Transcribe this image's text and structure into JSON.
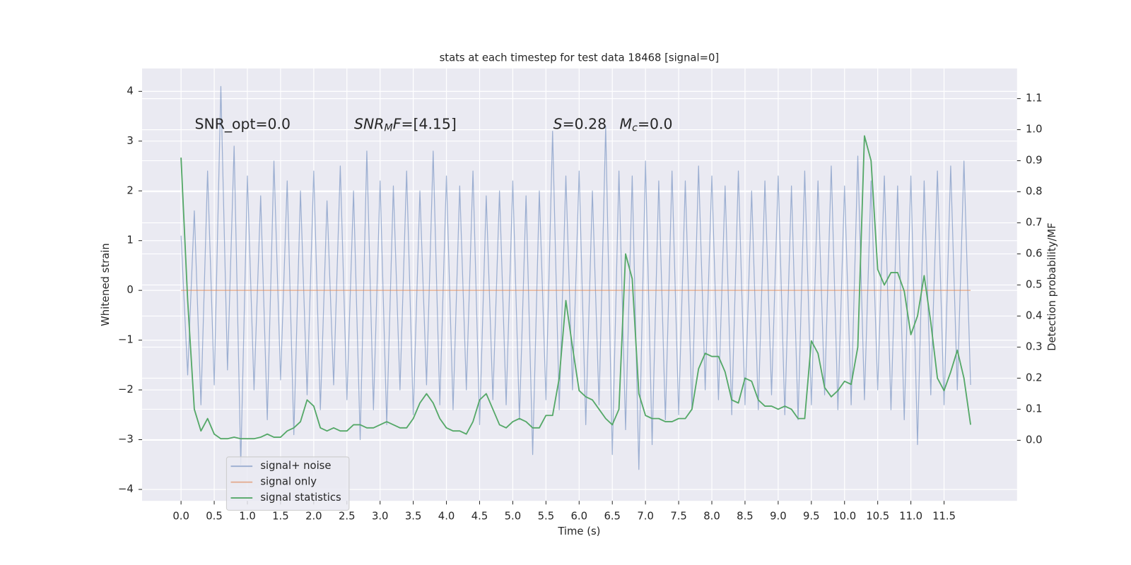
{
  "chart_data": {
    "type": "line",
    "title": "stats at each timestep for test data 18468 [signal=0]",
    "xlabel": "Time (s)",
    "ylabel": "Whitened strain",
    "y2label": "Detection probability/MF",
    "xlim": [
      -0.587,
      12.6
    ],
    "ylim": [
      -4.23,
      4.46
    ],
    "y2lim": [
      -0.195,
      1.197
    ],
    "xticks": [
      {
        "value": 0,
        "label": "0.0"
      },
      {
        "value": 0.5,
        "label": "0.5"
      },
      {
        "value": 1,
        "label": "1.0"
      },
      {
        "value": 1.5,
        "label": "1.5"
      },
      {
        "value": 2,
        "label": "2.0"
      },
      {
        "value": 2.5,
        "label": "2.5"
      },
      {
        "value": 3,
        "label": "3.0"
      },
      {
        "value": 3.5,
        "label": "3.5"
      },
      {
        "value": 4,
        "label": "4.0"
      },
      {
        "value": 4.5,
        "label": "4.5"
      },
      {
        "value": 5,
        "label": "5.0"
      },
      {
        "value": 5.5,
        "label": "5.5"
      },
      {
        "value": 6,
        "label": "6.0"
      },
      {
        "value": 6.5,
        "label": "6.5"
      },
      {
        "value": 7,
        "label": "7.0"
      },
      {
        "value": 7.5,
        "label": "7.5"
      },
      {
        "value": 8,
        "label": "8.0"
      },
      {
        "value": 8.5,
        "label": "8.5"
      },
      {
        "value": 9,
        "label": "9.0"
      },
      {
        "value": 9.5,
        "label": "9.5"
      },
      {
        "value": 10,
        "label": "10.0"
      },
      {
        "value": 10.5,
        "label": "10.5"
      },
      {
        "value": 11,
        "label": "11.0"
      },
      {
        "value": 11.5,
        "label": "11.5"
      }
    ],
    "yticks": [
      {
        "value": -4,
        "label": "−4"
      },
      {
        "value": -3,
        "label": "−3"
      },
      {
        "value": -2,
        "label": "−2"
      },
      {
        "value": -1,
        "label": "−1"
      },
      0,
      1,
      2,
      3,
      4
    ],
    "y2ticks": [
      {
        "value": 0,
        "label": "0.0"
      },
      {
        "value": 0.1,
        "label": "0.1"
      },
      {
        "value": 0.2,
        "label": "0.2"
      },
      {
        "value": 0.3,
        "label": "0.3"
      },
      {
        "value": 0.4,
        "label": "0.4"
      },
      {
        "value": 0.5,
        "label": "0.5"
      },
      {
        "value": 0.6,
        "label": "0.6"
      },
      {
        "value": 0.7,
        "label": "0.7"
      },
      {
        "value": 0.8,
        "label": "0.8"
      },
      {
        "value": 0.9,
        "label": "0.9"
      },
      {
        "value": 1,
        "label": "1.0"
      },
      {
        "value": 1.1,
        "label": "1.1"
      }
    ],
    "grid": true,
    "legend": "lower left",
    "annotations": [
      [
        {
          "text": "SNR_opt=0.0"
        }
      ],
      [
        {
          "text": "SNR",
          "italic": true
        },
        {
          "text": "M",
          "italic": true,
          "sub": true
        },
        {
          "text": "F",
          "italic": true
        },
        {
          "text": "=[4.15]"
        }
      ],
      [
        {
          "text": "S",
          "italic": true
        },
        {
          "text": "=0.28"
        }
      ],
      [
        {
          "text": "M",
          "italic": true
        },
        {
          "text": "c",
          "italic": true,
          "sub": true
        },
        {
          "text": "=0.0"
        }
      ]
    ],
    "x": [
      0,
      0.1,
      0.2,
      0.3,
      0.4,
      0.5,
      0.6,
      0.7,
      0.8,
      0.9,
      1,
      1.1,
      1.2,
      1.3,
      1.4,
      1.5,
      1.6,
      1.7,
      1.8,
      1.9,
      2,
      2.1,
      2.2,
      2.3,
      2.4,
      2.5,
      2.6,
      2.7,
      2.8,
      2.9,
      3,
      3.1,
      3.2,
      3.3,
      3.4,
      3.5,
      3.6,
      3.7,
      3.8,
      3.9,
      4,
      4.1,
      4.2,
      4.3,
      4.4,
      4.5,
      4.6,
      4.7,
      4.8,
      4.9,
      5,
      5.1,
      5.2,
      5.3,
      5.4,
      5.5,
      5.6,
      5.7,
      5.8,
      5.9,
      6,
      6.1,
      6.2,
      6.3,
      6.4,
      6.5,
      6.6,
      6.7,
      6.8,
      6.9,
      7,
      7.1,
      7.2,
      7.3,
      7.4,
      7.5,
      7.6,
      7.7,
      7.8,
      7.9,
      8,
      8.1,
      8.2,
      8.3,
      8.4,
      8.5,
      8.6,
      8.7,
      8.8,
      8.9,
      9,
      9.1,
      9.2,
      9.3,
      9.4,
      9.5,
      9.6,
      9.7,
      9.8,
      9.9,
      10,
      10.1,
      10.2,
      10.3,
      10.4,
      10.5,
      10.6,
      10.7,
      10.8,
      10.9,
      11,
      11.1,
      11.2,
      11.3,
      11.4,
      11.5,
      11.6,
      11.7,
      11.8,
      11.9
    ],
    "series": [
      {
        "name": "signal+ noise",
        "color": "#4c72b0",
        "axis": "y",
        "values": [
          1.1,
          -1.7,
          1.6,
          -2.3,
          2.4,
          -1.9,
          4.1,
          -1.6,
          2.9,
          -3.5,
          2.3,
          -2.0,
          1.9,
          -2.6,
          2.6,
          -1.8,
          2.2,
          -2.9,
          2.0,
          -2.1,
          2.4,
          -2.4,
          1.8,
          -1.9,
          2.5,
          -2.2,
          2.0,
          -3.0,
          2.8,
          -2.4,
          2.2,
          -2.7,
          2.1,
          -2.0,
          2.4,
          -2.5,
          2.0,
          -1.9,
          2.8,
          -2.3,
          2.3,
          -2.4,
          2.1,
          -2.0,
          2.4,
          -2.7,
          1.9,
          -2.2,
          2.0,
          -2.3,
          2.2,
          -2.6,
          1.9,
          -3.3,
          2.0,
          -2.2,
          3.2,
          -2.4,
          2.3,
          -2.0,
          2.4,
          -2.7,
          2.0,
          -2.3,
          3.3,
          -3.3,
          2.4,
          -2.8,
          2.3,
          -3.6,
          2.6,
          -3.1,
          2.2,
          -2.6,
          2.4,
          -2.5,
          2.2,
          -2.4,
          2.5,
          -2.0,
          2.3,
          -2.2,
          2.1,
          -2.5,
          2.4,
          -2.3,
          2.0,
          -2.4,
          2.2,
          -2.1,
          2.3,
          -2.5,
          2.1,
          -2.6,
          2.4,
          -2.3,
          2.2,
          -2.1,
          2.5,
          -2.4,
          2.1,
          -2.3,
          2.7,
          -2.2,
          2.2,
          -2.0,
          2.3,
          -2.4,
          2.1,
          -2.6,
          2.3,
          -3.1,
          2.2,
          -2.1,
          2.4,
          -2.3,
          2.5,
          -2.0,
          2.6,
          -1.9
        ]
      },
      {
        "name": "signal only",
        "color": "#dd8452",
        "axis": "y",
        "values": [
          0,
          0,
          0,
          0,
          0,
          0,
          0,
          0,
          0,
          0,
          0,
          0,
          0,
          0,
          0,
          0,
          0,
          0,
          0,
          0,
          0,
          0,
          0,
          0,
          0,
          0,
          0,
          0,
          0,
          0,
          0,
          0,
          0,
          0,
          0,
          0,
          0,
          0,
          0,
          0,
          0,
          0,
          0,
          0,
          0,
          0,
          0,
          0,
          0,
          0,
          0,
          0,
          0,
          0,
          0,
          0,
          0,
          0,
          0,
          0,
          0,
          0,
          0,
          0,
          0,
          0,
          0,
          0,
          0,
          0,
          0,
          0,
          0,
          0,
          0,
          0,
          0,
          0,
          0,
          0,
          0,
          0,
          0,
          0,
          0,
          0,
          0,
          0,
          0,
          0,
          0,
          0,
          0,
          0,
          0,
          0,
          0,
          0,
          0,
          0,
          0,
          0,
          0,
          0,
          0,
          0,
          0,
          0,
          0,
          0,
          0,
          0,
          0,
          0,
          0,
          0,
          0,
          0,
          0,
          0
        ]
      },
      {
        "name": "signal statistics",
        "color": "#55a868",
        "axis": "y2",
        "values": [
          0.91,
          0.45,
          0.1,
          0.03,
          0.07,
          0.02,
          0.005,
          0.005,
          0.01,
          0.005,
          0.005,
          0.005,
          0.01,
          0.02,
          0.01,
          0.01,
          0.03,
          0.04,
          0.06,
          0.13,
          0.11,
          0.04,
          0.03,
          0.04,
          0.03,
          0.03,
          0.05,
          0.05,
          0.04,
          0.04,
          0.05,
          0.06,
          0.05,
          0.04,
          0.04,
          0.07,
          0.12,
          0.15,
          0.12,
          0.07,
          0.04,
          0.03,
          0.03,
          0.02,
          0.06,
          0.13,
          0.15,
          0.1,
          0.05,
          0.04,
          0.06,
          0.07,
          0.06,
          0.04,
          0.04,
          0.08,
          0.08,
          0.2,
          0.45,
          0.3,
          0.16,
          0.14,
          0.13,
          0.1,
          0.07,
          0.05,
          0.1,
          0.6,
          0.52,
          0.15,
          0.08,
          0.07,
          0.07,
          0.06,
          0.06,
          0.07,
          0.07,
          0.1,
          0.23,
          0.28,
          0.27,
          0.27,
          0.22,
          0.13,
          0.12,
          0.2,
          0.19,
          0.13,
          0.11,
          0.11,
          0.1,
          0.11,
          0.1,
          0.07,
          0.07,
          0.32,
          0.28,
          0.17,
          0.14,
          0.16,
          0.19,
          0.18,
          0.3,
          0.98,
          0.9,
          0.55,
          0.5,
          0.54,
          0.54,
          0.48,
          0.34,
          0.4,
          0.53,
          0.38,
          0.2,
          0.16,
          0.22,
          0.29,
          0.2,
          0.05
        ]
      }
    ]
  }
}
